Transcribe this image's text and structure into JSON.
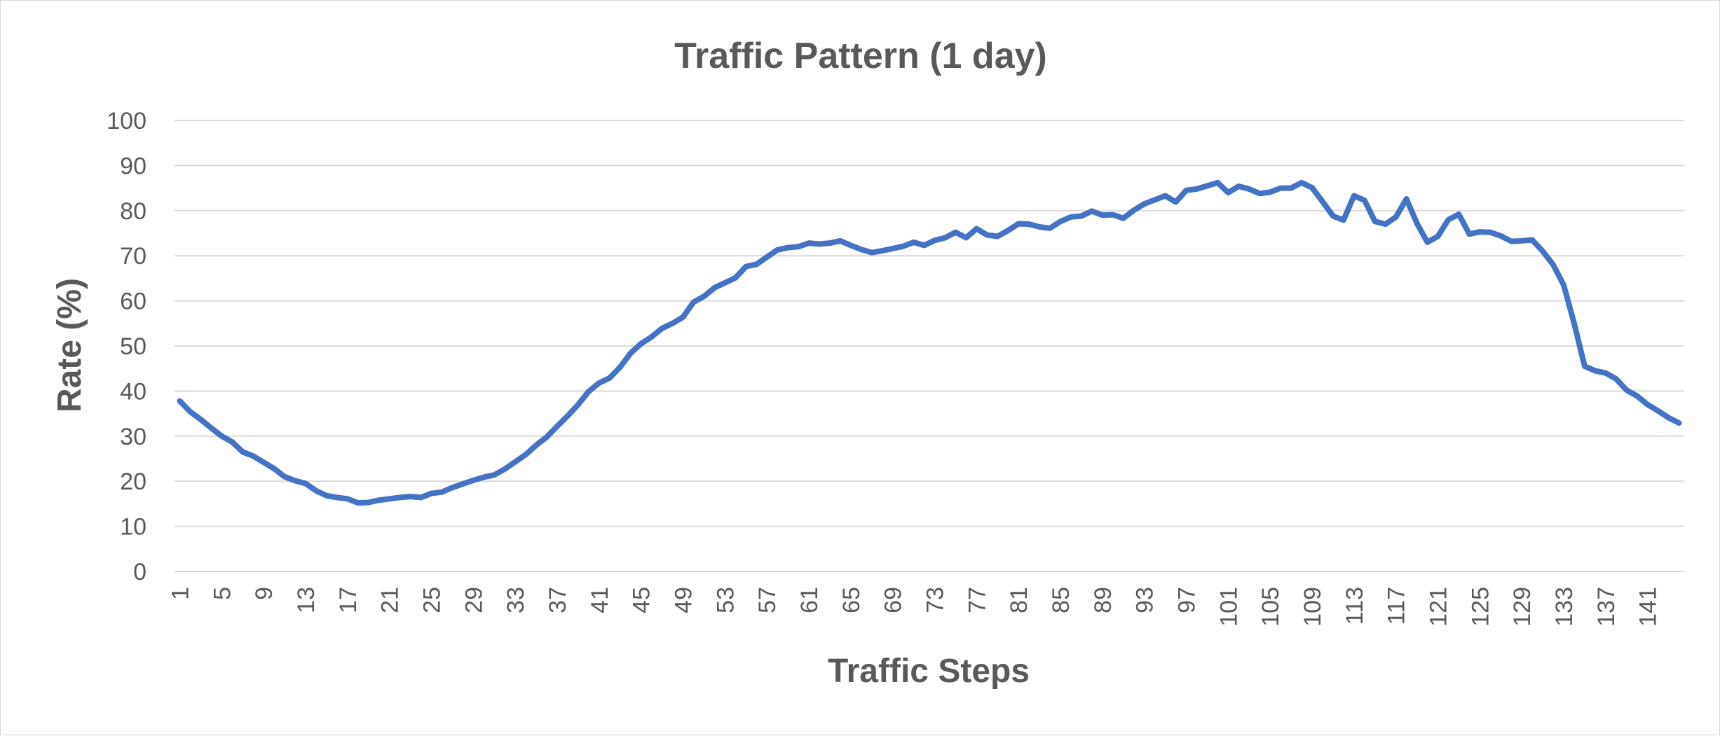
{
  "chart_data": {
    "type": "line",
    "title": "Traffic Pattern (1 day)",
    "xlabel": "Traffic Steps",
    "ylabel": "Rate (%)",
    "ylim": [
      0,
      100
    ],
    "yticks": [
      "0",
      "10",
      "20",
      "30",
      "40",
      "50",
      "60",
      "70",
      "80",
      "90",
      "100"
    ],
    "xticks": [
      "1",
      "5",
      "9",
      "13",
      "17",
      "21",
      "25",
      "29",
      "33",
      "37",
      "41",
      "45",
      "49",
      "53",
      "57",
      "61",
      "65",
      "69",
      "73",
      "77",
      "81",
      "85",
      "89",
      "93",
      "97",
      "101",
      "105",
      "109",
      "113",
      "117",
      "121",
      "125",
      "129",
      "133",
      "137",
      "141"
    ],
    "grid": true,
    "legend": "none",
    "color": "#4472c4",
    "x_start": 1,
    "values": [
      37.8,
      35.4,
      33.7,
      31.8,
      30.0,
      28.7,
      26.5,
      25.6,
      24.2,
      22.8,
      21.0,
      20.1,
      19.5,
      17.9,
      16.8,
      16.4,
      16.1,
      15.2,
      15.3,
      15.8,
      16.1,
      16.4,
      16.6,
      16.4,
      17.3,
      17.6,
      18.6,
      19.4,
      20.2,
      20.9,
      21.4,
      22.7,
      24.3,
      25.9,
      28.0,
      29.8,
      32.2,
      34.5,
      37.0,
      39.9,
      41.8,
      42.9,
      45.3,
      48.4,
      50.5,
      52.0,
      53.9,
      55.0,
      56.4,
      59.7,
      61.0,
      62.9,
      64.0,
      65.1,
      67.6,
      68.1,
      69.7,
      71.3,
      71.8,
      72.0,
      72.8,
      72.6,
      72.8,
      73.3,
      72.3,
      71.4,
      70.7,
      71.1,
      71.6,
      72.1,
      73.0,
      72.3,
      73.4,
      74.0,
      75.2,
      74.0,
      76.0,
      74.6,
      74.3,
      75.6,
      77.1,
      77.0,
      76.4,
      76.1,
      77.6,
      78.6,
      78.8,
      79.9,
      79.0,
      79.1,
      78.3,
      80.1,
      81.5,
      82.4,
      83.3,
      81.9,
      84.5,
      84.8,
      85.5,
      86.2,
      84.0,
      85.4,
      84.8,
      83.8,
      84.1,
      85.0,
      85.0,
      86.2,
      85.1,
      82.0,
      78.8,
      77.9,
      83.3,
      82.3,
      77.6,
      77.0,
      78.6,
      82.6,
      77.2,
      73.0,
      74.3,
      78.0,
      79.2,
      74.8,
      75.3,
      75.2,
      74.4,
      73.2,
      73.3,
      73.5,
      71.0,
      68.0,
      63.5,
      55.0,
      45.5,
      44.5,
      44.0,
      42.7,
      40.2,
      38.9,
      37.0,
      35.6,
      34.1,
      32.9
    ]
  }
}
